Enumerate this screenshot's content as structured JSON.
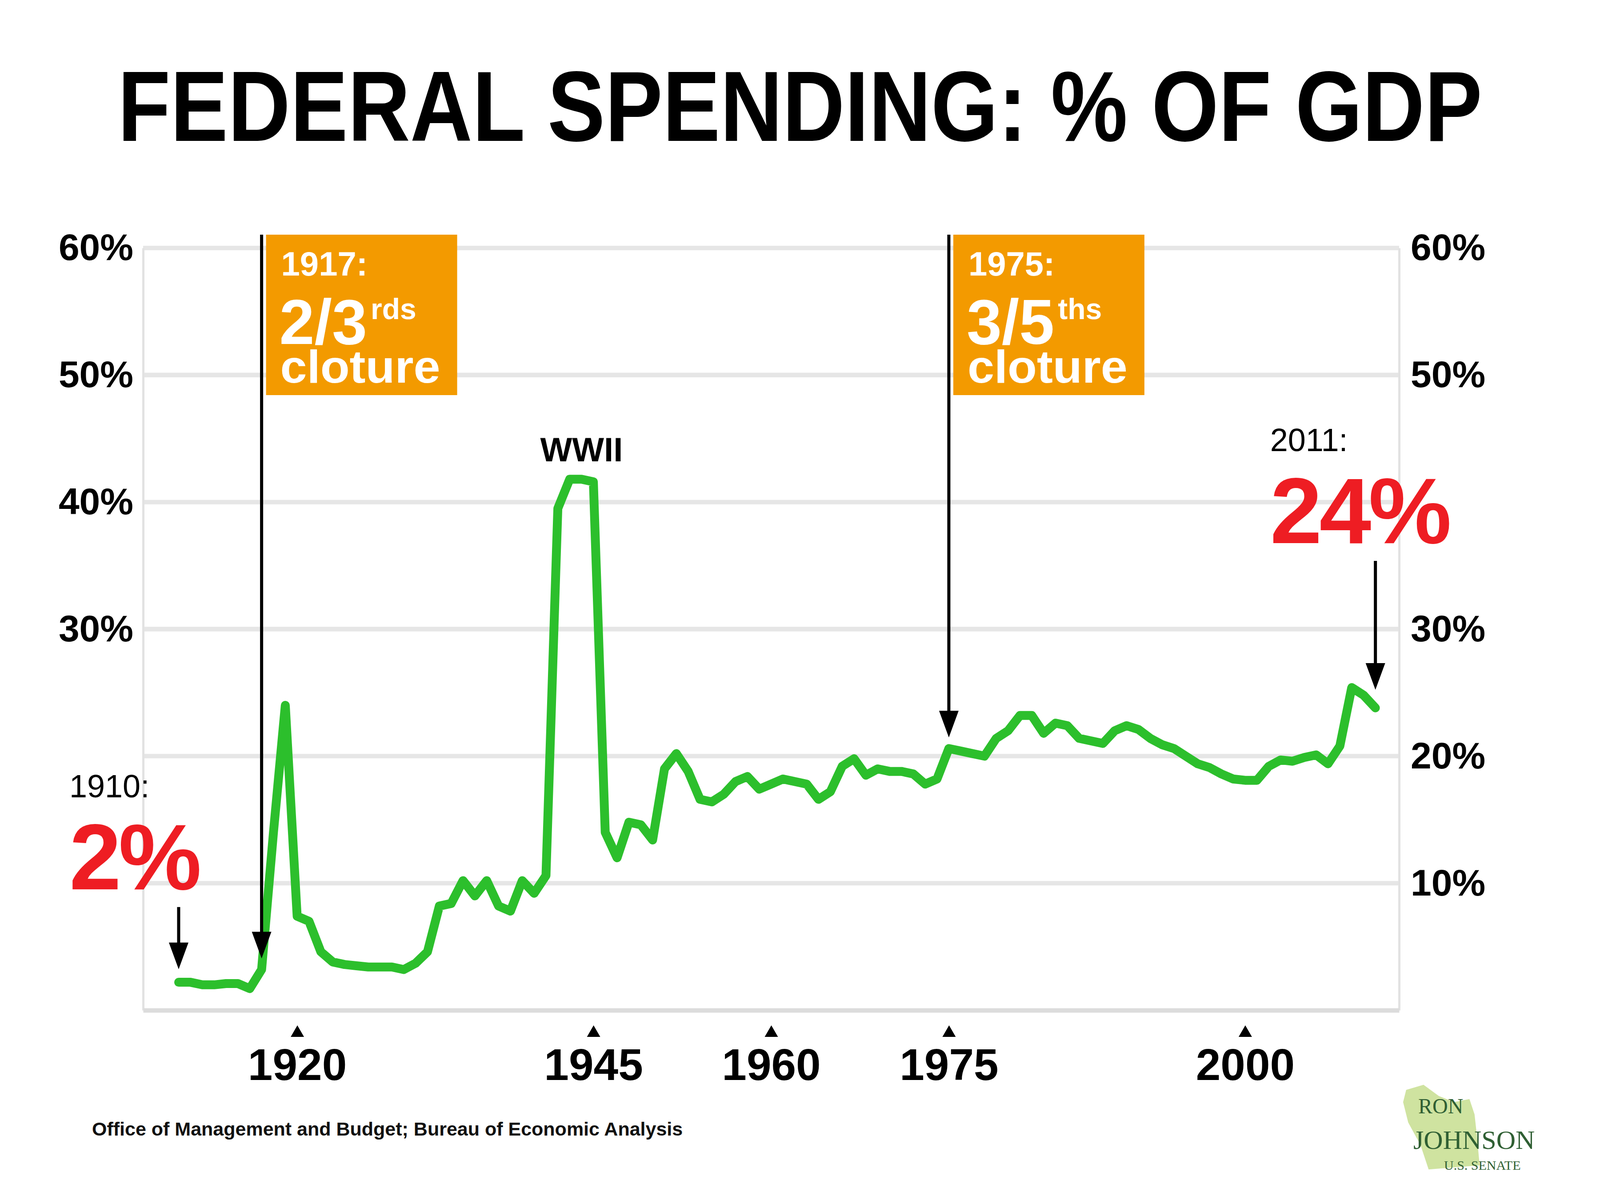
{
  "chart_data": {
    "type": "line",
    "title": "FEDERAL SPENDING: % OF GDP",
    "x": [
      1910,
      1911,
      1912,
      1913,
      1914,
      1915,
      1916,
      1917,
      1918,
      1919,
      1920,
      1921,
      1922,
      1923,
      1924,
      1925,
      1926,
      1927,
      1928,
      1929,
      1930,
      1931,
      1932,
      1933,
      1934,
      1935,
      1936,
      1937,
      1938,
      1939,
      1940,
      1941,
      1942,
      1943,
      1944,
      1945,
      1946,
      1947,
      1948,
      1949,
      1950,
      1951,
      1952,
      1953,
      1954,
      1955,
      1956,
      1957,
      1958,
      1959,
      1960,
      1961,
      1962,
      1963,
      1964,
      1965,
      1966,
      1967,
      1968,
      1969,
      1970,
      1971,
      1972,
      1973,
      1974,
      1975,
      1976,
      1977,
      1978,
      1979,
      1980,
      1981,
      1982,
      1983,
      1984,
      1985,
      1986,
      1987,
      1988,
      1989,
      1990,
      1991,
      1992,
      1993,
      1994,
      1995,
      1996,
      1997,
      1998,
      1999,
      2000,
      2001,
      2002,
      2003,
      2004,
      2005,
      2006,
      2007,
      2008,
      2009,
      2010,
      2011
    ],
    "values": [
      2.2,
      2.2,
      2.0,
      2.0,
      2.1,
      2.1,
      1.7,
      3.2,
      14.0,
      24.0,
      7.4,
      7.0,
      4.6,
      3.8,
      3.6,
      3.5,
      3.4,
      3.4,
      3.4,
      3.2,
      3.7,
      4.6,
      8.2,
      8.4,
      10.2,
      9.0,
      10.2,
      8.2,
      7.8,
      10.2,
      9.2,
      10.6,
      39.5,
      41.8,
      41.8,
      41.6,
      14.0,
      12.0,
      14.8,
      14.6,
      13.4,
      19.0,
      20.2,
      18.8,
      16.6,
      16.4,
      17.0,
      18.0,
      18.4,
      17.4,
      17.8,
      18.2,
      18.0,
      17.8,
      16.6,
      17.2,
      19.2,
      19.8,
      18.5,
      19.0,
      18.8,
      18.8,
      18.6,
      17.8,
      18.2,
      20.6,
      20.4,
      20.2,
      20.0,
      21.4,
      22.0,
      23.2,
      23.2,
      21.8,
      22.6,
      22.4,
      21.4,
      21.2,
      21.0,
      22.0,
      22.4,
      22.1,
      21.4,
      20.9,
      20.6,
      20.0,
      19.4,
      19.1,
      18.6,
      18.2,
      18.1,
      18.1,
      19.2,
      19.7,
      19.6,
      19.9,
      20.1,
      19.4,
      20.8,
      25.4,
      24.8,
      23.8
    ],
    "color": "#2cbf2c",
    "xlim": [
      1907,
      2013
    ],
    "ylim": [
      0,
      60
    ],
    "y2lim": [
      0,
      60
    ],
    "xticks": [
      1920,
      1945,
      1960,
      1975,
      2000
    ],
    "yticks": [
      {
        "value": 30,
        "label": "30%"
      },
      {
        "value": 40,
        "label": "40%"
      },
      {
        "value": 50,
        "label": "50%"
      },
      {
        "value": 60,
        "label": "60%"
      }
    ],
    "y2ticks": [
      {
        "value": 10,
        "label": "10%"
      },
      {
        "value": 20,
        "label": "20%"
      },
      {
        "value": 30,
        "label": "30%"
      },
      {
        "value": 50,
        "label": "50%"
      },
      {
        "value": 60,
        "label": "60%"
      }
    ],
    "grid": true,
    "callouts": [
      {
        "x": 1910,
        "y": 2,
        "label": "1910:",
        "text": "2%",
        "color": "#ee1d23"
      },
      {
        "x": 2011,
        "y": 24,
        "label": "2011:",
        "text": "24%",
        "color": "#ee1d23"
      }
    ],
    "events": [
      {
        "x": 1917,
        "label": "1917:",
        "text": "2/3",
        "superscript": "rds",
        "subtext": "cloture",
        "color": "#f39a00"
      },
      {
        "x": 1975,
        "label": "1975:",
        "text": "3/5",
        "superscript": "ths",
        "subtext": "cloture",
        "color": "#f39a00"
      }
    ],
    "labels": [
      {
        "x": 1944,
        "text": "WWII"
      }
    ],
    "source": "Office of Management and Budget; Bureau of Economic Analysis",
    "branding": [
      "RON",
      "JOHNSON",
      "U.S. SENATE"
    ]
  }
}
